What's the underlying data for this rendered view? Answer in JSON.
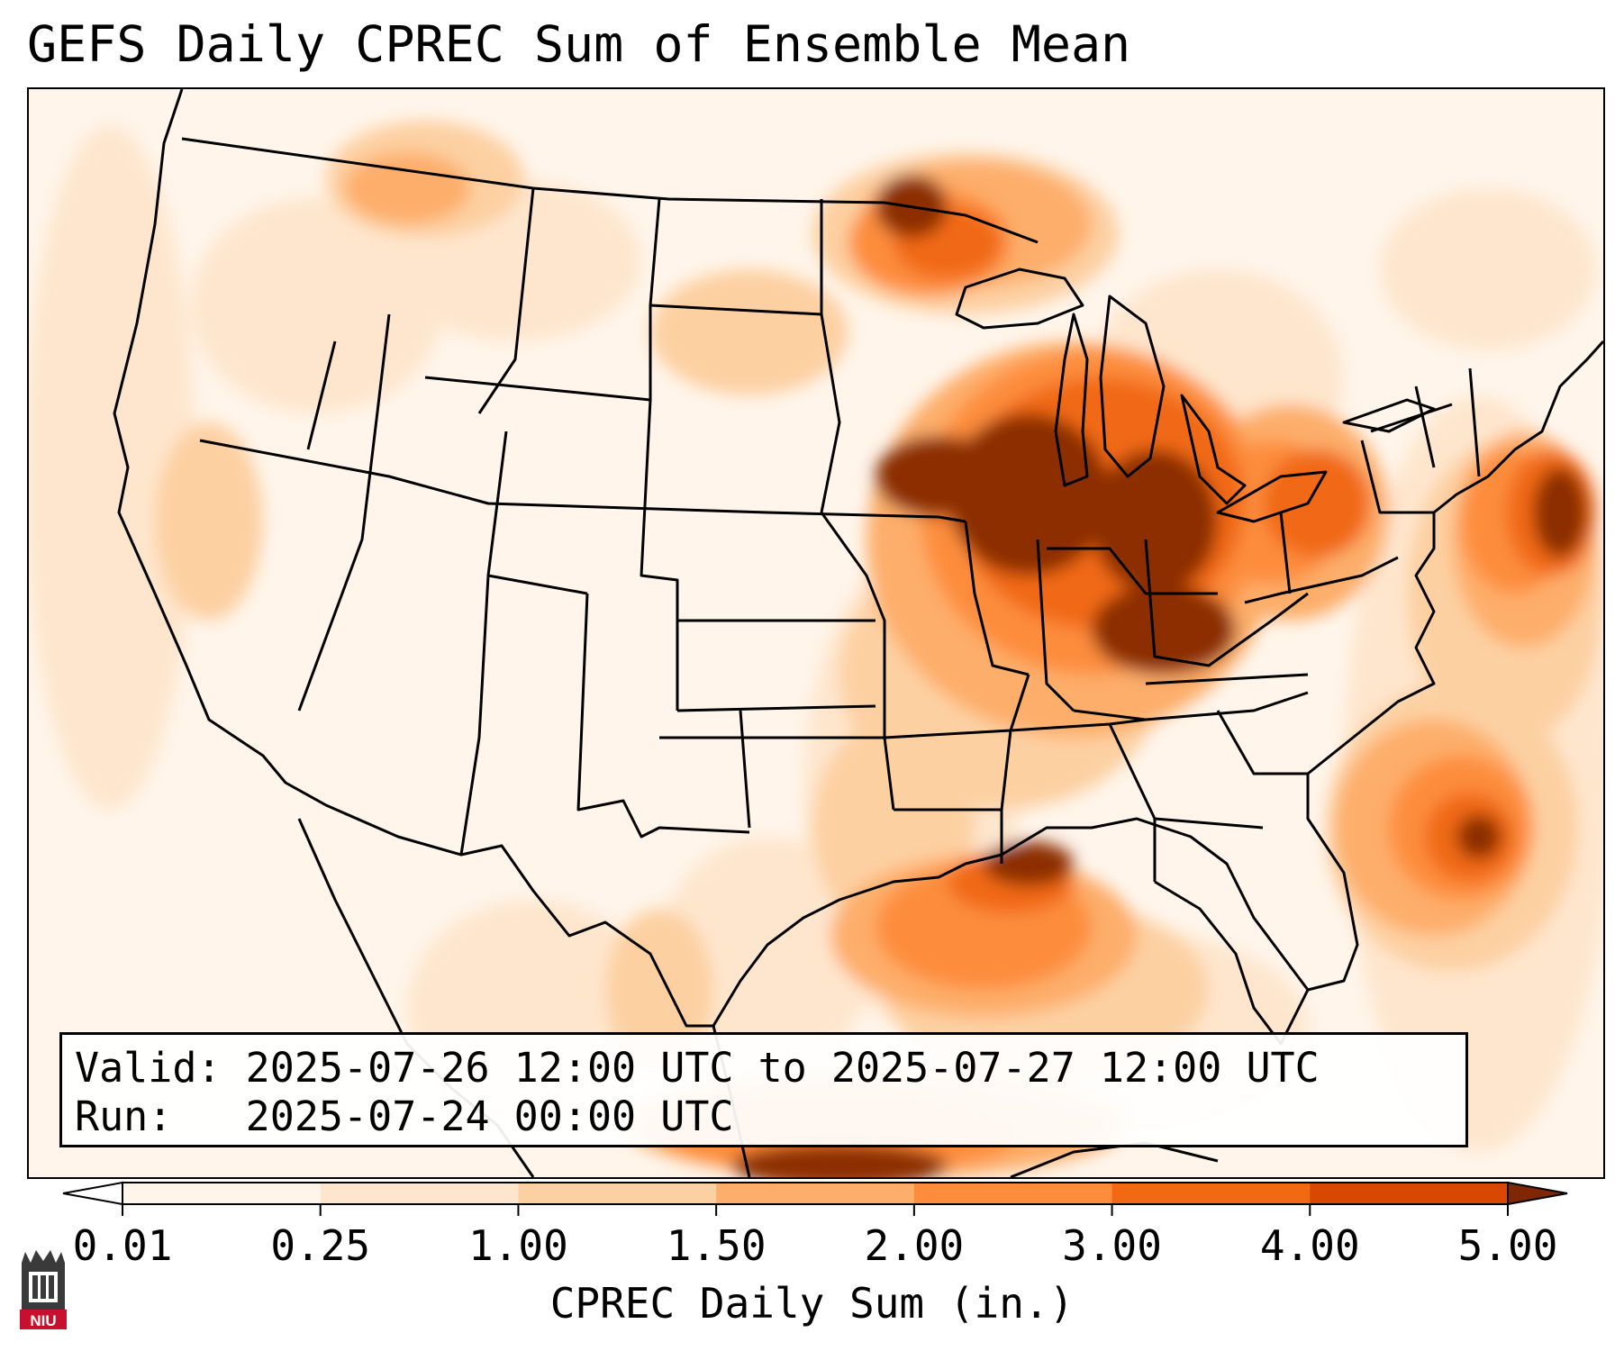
{
  "title": "GEFS Daily CPREC Sum of Ensemble Mean",
  "info": {
    "valid_label": "Valid:",
    "valid_value": "2025-07-26 12:00 UTC to 2025-07-27 12:00 UTC",
    "run_label": "Run:",
    "run_value": "2025-07-24 00:00 UTC"
  },
  "colorbar": {
    "label": "CPREC Daily Sum (in.)",
    "ticks": [
      "0.01",
      "0.25",
      "1.00",
      "1.50",
      "2.00",
      "3.00",
      "4.00",
      "5.00"
    ],
    "colors": [
      "#fff5eb",
      "#fee6ce",
      "#fdd0a2",
      "#fdae6b",
      "#fd8d3c",
      "#f16913",
      "#d94801",
      "#8c2d04"
    ],
    "under_color": "#ffffff",
    "over_color": "#7f2704"
  },
  "logo": {
    "text": "NIU",
    "color": "#c8102e"
  }
}
